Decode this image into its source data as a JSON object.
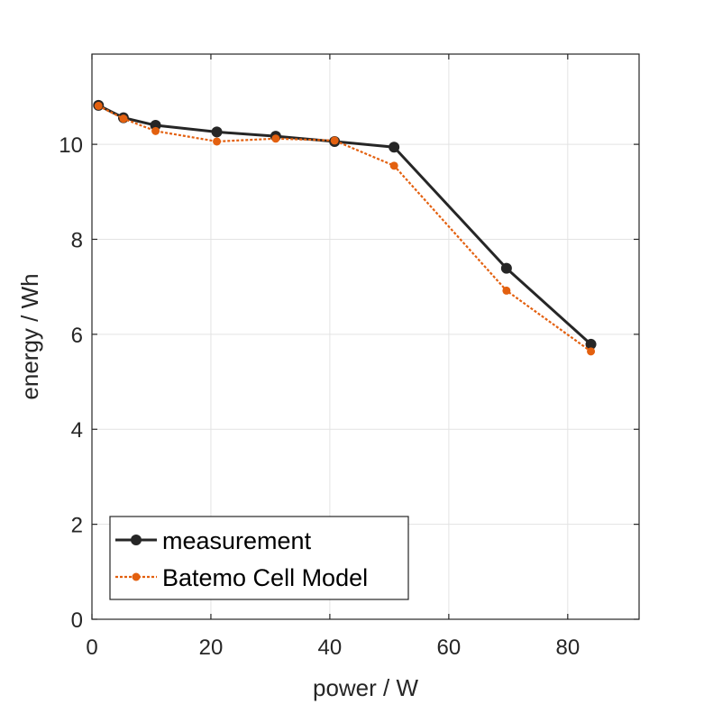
{
  "chart_data": {
    "type": "line",
    "xlabel": "power / W",
    "ylabel": "energy / Wh",
    "xlim": [
      0,
      92
    ],
    "ylim": [
      0,
      11.9
    ],
    "xticks": [
      0,
      20,
      40,
      60,
      80
    ],
    "yticks": [
      0,
      2,
      4,
      6,
      8,
      10
    ],
    "xtick_labels": [
      "0",
      "20",
      "40",
      "60",
      "80"
    ],
    "ytick_labels": [
      "0",
      "2",
      "4",
      "6",
      "8",
      "10"
    ],
    "grid": true,
    "legend_position": "bottom-left",
    "series": [
      {
        "name": "measurement",
        "color": "#262626",
        "line_style": "solid",
        "marker": "circle",
        "x": [
          1.1,
          5.3,
          10.7,
          21.0,
          30.9,
          40.8,
          50.8,
          69.7,
          83.9
        ],
        "y": [
          10.82,
          10.56,
          10.4,
          10.26,
          10.17,
          10.06,
          9.94,
          7.39,
          5.79
        ]
      },
      {
        "name": "Batemo Cell Model",
        "color": "#e3600f",
        "line_style": "dotted",
        "marker": "circle",
        "x": [
          1.1,
          5.3,
          10.7,
          21.0,
          30.9,
          40.8,
          50.8,
          69.7,
          83.9
        ],
        "y": [
          10.81,
          10.54,
          10.28,
          10.06,
          10.12,
          10.08,
          9.55,
          6.92,
          5.64
        ]
      }
    ]
  }
}
